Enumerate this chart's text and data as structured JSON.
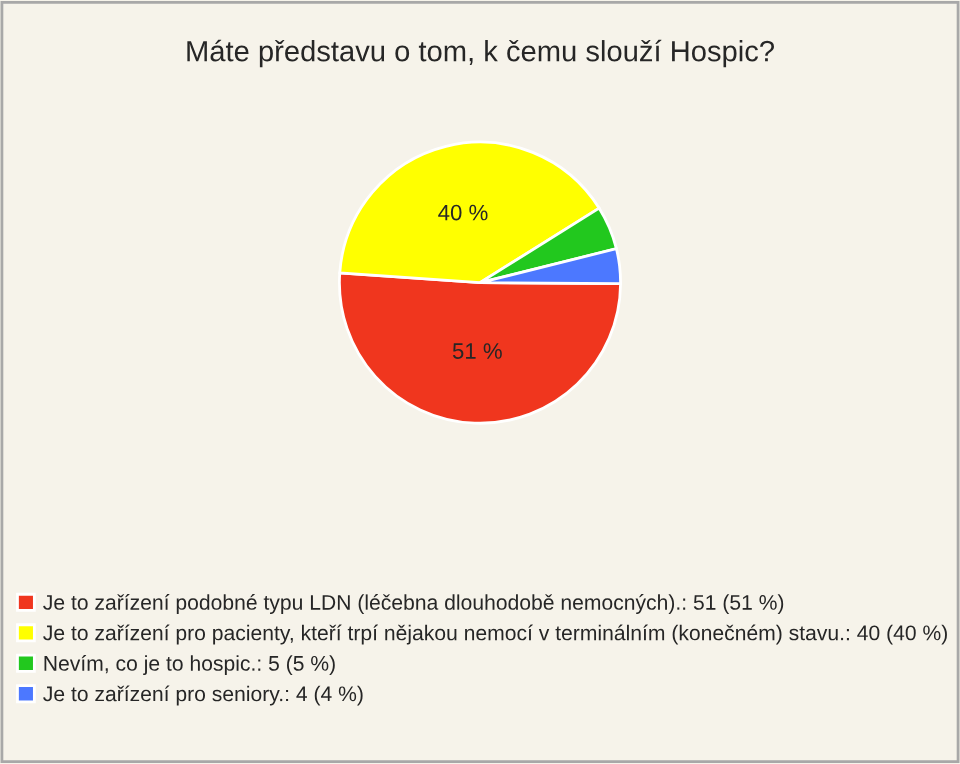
{
  "chart_data": {
    "type": "pie",
    "title": "Máte představu o tom, k čemu slouží Hospic?",
    "categories": [
      "Je to zařízení podobné typu LDN (léčebna dlouhodobě nemocných).: 51 (51 %)",
      "Je to zařízení pro pacienty, kteří trpí nějakou nemocí v terminálním (konečném) stavu.: 40 (40 %)",
      "Nevím, co je to hospic.: 5 (5 %)",
      "Je to zařízení pro seniory.: 4 (4 %)"
    ],
    "values": [
      51,
      40,
      5,
      4
    ],
    "colors": [
      "#f0361e",
      "#ffff00",
      "#22c81e",
      "#4c78ff"
    ],
    "value_labels": [
      "51 %",
      "40 %",
      null,
      null
    ],
    "legend": "bottom left"
  }
}
